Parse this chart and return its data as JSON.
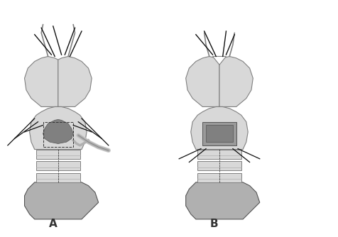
{
  "background_color": "#ffffff",
  "label_A": "A",
  "label_B": "B",
  "label_fontsize": 11,
  "fig_width": 4.76,
  "fig_height": 3.34,
  "dpi": 100,
  "structure_color_light": "#d8d8d8",
  "structure_color_mid": "#b0b0b0",
  "structure_color_dark": "#808080",
  "structure_color_darker": "#555555",
  "suture_color": "#111111",
  "instrument_color": "#cccccc",
  "dashed_color": "#333333"
}
